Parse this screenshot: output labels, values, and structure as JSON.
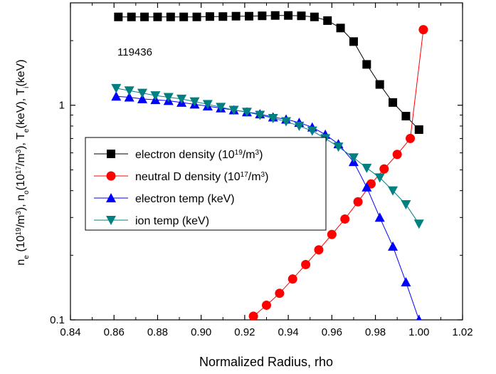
{
  "chart_data": {
    "type": "scatter",
    "title": "",
    "annotation": "119436",
    "xlabel": "Normalized Radius, rho",
    "ylabel": {
      "segments": [
        {
          "t": "n",
          "s": "normal"
        },
        {
          "t": "e",
          "s": "sub"
        },
        {
          "t": " (10",
          "s": "normal"
        },
        {
          "t": "19",
          "s": "sup"
        },
        {
          "t": "/m",
          "s": "normal"
        },
        {
          "t": "3",
          "s": "sup"
        },
        {
          "t": "), n",
          "s": "normal"
        },
        {
          "t": "o",
          "s": "sub"
        },
        {
          "t": "(10",
          "s": "normal"
        },
        {
          "t": "17",
          "s": "sup"
        },
        {
          "t": "/m",
          "s": "normal"
        },
        {
          "t": "3",
          "s": "sup"
        },
        {
          "t": "), T",
          "s": "normal"
        },
        {
          "t": "e",
          "s": "sub"
        },
        {
          "t": "(keV), T",
          "s": "normal"
        },
        {
          "t": "i",
          "s": "sub"
        },
        {
          "t": "(keV)",
          "s": "normal"
        }
      ]
    },
    "xlim": [
      0.84,
      1.02
    ],
    "ylim": [
      0.1,
      3.0
    ],
    "yscale": "log",
    "xticks": [
      "0.84",
      "0.86",
      "0.88",
      "0.90",
      "0.92",
      "0.94",
      "0.96",
      "0.98",
      "1.00",
      "1.02"
    ],
    "yticks": [
      {
        "value": 0.1,
        "label": "0.1"
      },
      {
        "value": 1,
        "label": "1"
      }
    ],
    "grid": false,
    "legend_position": "center-left",
    "series": [
      {
        "name": "electron density (10^19/m^3)",
        "legend": [
          {
            "t": "electron density (10",
            "s": "normal"
          },
          {
            "t": "19",
            "s": "sup"
          },
          {
            "t": "/m",
            "s": "normal"
          },
          {
            "t": "3",
            "s": "sup"
          },
          {
            "t": ")",
            "s": "normal"
          }
        ],
        "marker": "square",
        "color": "#000000",
        "x": [
          0.862,
          0.868,
          0.874,
          0.88,
          0.886,
          0.892,
          0.898,
          0.904,
          0.91,
          0.916,
          0.922,
          0.928,
          0.934,
          0.94,
          0.946,
          0.952,
          0.958,
          0.964,
          0.97,
          0.976,
          0.982,
          0.988,
          0.994,
          1.0
        ],
        "y": [
          2.58,
          2.58,
          2.58,
          2.58,
          2.58,
          2.58,
          2.58,
          2.59,
          2.59,
          2.6,
          2.6,
          2.61,
          2.62,
          2.62,
          2.61,
          2.58,
          2.48,
          2.29,
          1.98,
          1.55,
          1.25,
          1.03,
          0.89,
          0.77
        ]
      },
      {
        "name": "neutral D density (10^17/m^3)",
        "legend": [
          {
            "t": "neutral D density (10",
            "s": "normal"
          },
          {
            "t": "17",
            "s": "sup"
          },
          {
            "t": "/m",
            "s": "normal"
          },
          {
            "t": "3",
            "s": "sup"
          },
          {
            "t": ")",
            "s": "normal"
          }
        ],
        "marker": "circle",
        "color": "#ff0000",
        "x": [
          0.924,
          0.93,
          0.936,
          0.942,
          0.948,
          0.954,
          0.96,
          0.966,
          0.972,
          0.978,
          0.984,
          0.99,
          0.996,
          1.002
        ],
        "y": [
          0.104,
          0.117,
          0.133,
          0.155,
          0.181,
          0.212,
          0.25,
          0.295,
          0.355,
          0.43,
          0.505,
          0.59,
          0.7,
          2.25
        ]
      },
      {
        "name": "electron temp (keV)",
        "legend": [
          {
            "t": "electron temp (keV)",
            "s": "normal"
          }
        ],
        "marker": "triangle-up",
        "color": "#0000ff",
        "x": [
          0.861,
          0.867,
          0.873,
          0.879,
          0.885,
          0.891,
          0.897,
          0.903,
          0.909,
          0.915,
          0.921,
          0.927,
          0.933,
          0.939,
          0.945,
          0.951,
          0.957,
          0.963,
          0.97,
          0.976,
          0.982,
          0.988,
          0.994,
          1.0
        ],
        "y": [
          1.1,
          1.09,
          1.07,
          1.06,
          1.05,
          1.03,
          1.01,
          0.99,
          0.97,
          0.95,
          0.93,
          0.91,
          0.88,
          0.86,
          0.83,
          0.79,
          0.73,
          0.66,
          0.545,
          0.415,
          0.3,
          0.22,
          0.15,
          0.1
        ]
      },
      {
        "name": "ion temp (keV)",
        "legend": [
          {
            "t": "ion temp (keV)",
            "s": "normal"
          }
        ],
        "marker": "triangle-down",
        "color": "#008080",
        "x": [
          0.861,
          0.867,
          0.873,
          0.879,
          0.885,
          0.891,
          0.897,
          0.903,
          0.909,
          0.915,
          0.921,
          0.927,
          0.933,
          0.939,
          0.945,
          0.951,
          0.957,
          0.963,
          0.97,
          0.976,
          0.982,
          0.988,
          0.994,
          1.0
        ],
        "y": [
          1.2,
          1.17,
          1.14,
          1.11,
          1.09,
          1.07,
          1.04,
          1.01,
          0.98,
          0.95,
          0.93,
          0.9,
          0.87,
          0.84,
          0.8,
          0.76,
          0.7,
          0.64,
          0.57,
          0.51,
          0.46,
          0.4,
          0.345,
          0.28
        ]
      }
    ]
  }
}
